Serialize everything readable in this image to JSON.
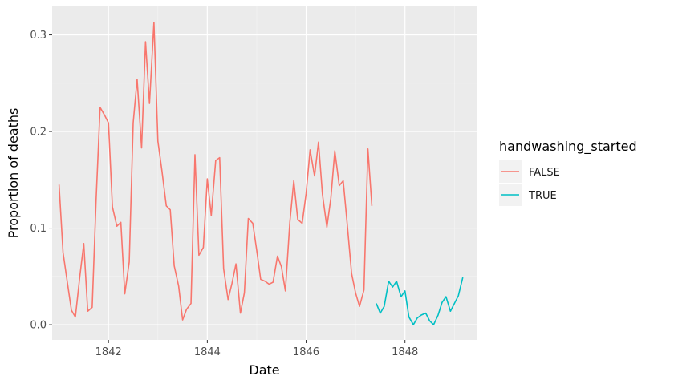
{
  "chart_data": {
    "type": "line",
    "title": "",
    "xlabel": "Date",
    "ylabel": "Proportion of deaths",
    "xlim": [
      1840.86,
      1849.45
    ],
    "ylim": [
      -0.0157,
      0.3295
    ],
    "xticks": [
      1842,
      1844,
      1846,
      1848
    ],
    "yticks": [
      0.0,
      0.1,
      0.2,
      0.3
    ],
    "ytick_labels": [
      "0.0",
      "0.1",
      "0.2",
      "0.3"
    ],
    "legend": {
      "title": "handwashing_started",
      "position": "right",
      "entries": [
        {
          "label": "FALSE",
          "color": "#F8766D"
        },
        {
          "label": "TRUE",
          "color": "#00BFC4"
        }
      ]
    },
    "series": [
      {
        "name": "FALSE",
        "color": "#F8766D",
        "x": [
          1841.0,
          1841.08,
          1841.17,
          1841.25,
          1841.33,
          1841.42,
          1841.5,
          1841.58,
          1841.67,
          1841.75,
          1841.83,
          1841.92,
          1842.0,
          1842.08,
          1842.17,
          1842.25,
          1842.33,
          1842.42,
          1842.5,
          1842.58,
          1842.67,
          1842.75,
          1842.83,
          1842.92,
          1843.0,
          1843.08,
          1843.17,
          1843.25,
          1843.33,
          1843.42,
          1843.5,
          1843.58,
          1843.67,
          1843.75,
          1843.83,
          1843.92,
          1844.0,
          1844.08,
          1844.17,
          1844.25,
          1844.33,
          1844.42,
          1844.5,
          1844.58,
          1844.67,
          1844.75,
          1844.83,
          1844.92,
          1845.0,
          1845.08,
          1845.17,
          1845.25,
          1845.33,
          1845.42,
          1845.5,
          1845.58,
          1845.67,
          1845.75,
          1845.83,
          1845.92,
          1846.0,
          1846.08,
          1846.17,
          1846.25,
          1846.33,
          1846.42,
          1846.5,
          1846.58,
          1846.67,
          1846.75,
          1846.83,
          1846.92,
          1847.0,
          1847.08,
          1847.17,
          1847.25,
          1847.33,
          1847.42
        ],
        "y": [
          0.145,
          0.075,
          0.043,
          0.015,
          0.008,
          0.05,
          0.084,
          0.014,
          0.018,
          0.13,
          0.225,
          0.217,
          0.209,
          0.122,
          0.102,
          0.106,
          0.032,
          0.065,
          0.209,
          0.254,
          0.183,
          0.293,
          0.229,
          0.313,
          0.19,
          0.16,
          0.123,
          0.119,
          0.061,
          0.04,
          0.005,
          0.016,
          0.022,
          0.176,
          0.072,
          0.08,
          0.151,
          0.113,
          0.17,
          0.173,
          0.058,
          0.026,
          0.043,
          0.063,
          0.012,
          0.033,
          0.11,
          0.105,
          0.077,
          0.047,
          0.045,
          0.042,
          0.044,
          0.071,
          0.06,
          0.035,
          0.106,
          0.149,
          0.109,
          0.105,
          0.136,
          0.181,
          0.154,
          0.189,
          0.135,
          0.101,
          0.131,
          0.18,
          0.144,
          0.149,
          0.105,
          0.053,
          0.033,
          0.019,
          0.036,
          0.182,
          0.123,
          null
        ]
      },
      {
        "name": "TRUE",
        "color": "#00BFC4",
        "x": [
          1847.42,
          1847.5,
          1847.58,
          1847.67,
          1847.75,
          1847.83,
          1847.92,
          1848.0,
          1848.08,
          1848.17,
          1848.25,
          1848.33,
          1848.42,
          1848.5,
          1848.58,
          1848.67,
          1848.75,
          1848.83,
          1848.92,
          1849.0,
          1849.08,
          1849.17
        ],
        "y": [
          0.022,
          0.012,
          0.019,
          0.045,
          0.039,
          0.045,
          0.029,
          0.035,
          0.008,
          0.0,
          0.007,
          0.01,
          0.012,
          0.004,
          0.0,
          0.01,
          0.023,
          0.029,
          0.014,
          0.022,
          0.03,
          0.049
        ]
      }
    ]
  }
}
